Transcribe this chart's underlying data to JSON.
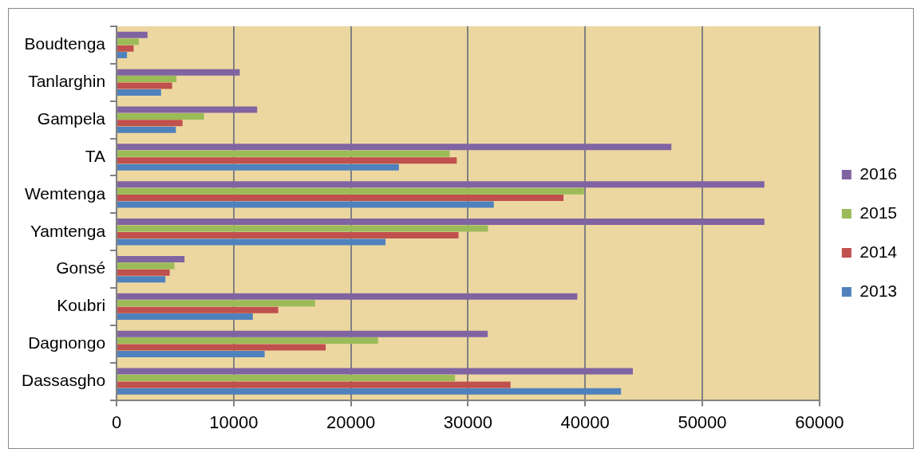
{
  "chart_data": {
    "type": "bar",
    "orientation": "horizontal",
    "categories": [
      "Boudtenga",
      "Tanlarghin",
      "Gampela",
      "TA",
      "Wemtenga",
      "Yamtenga",
      "Gonsé",
      "Koubri",
      "Dagnongo",
      "Dassasgho"
    ],
    "series": [
      {
        "name": "2016",
        "color": "#8064a2",
        "values": [
          2640,
          10520,
          12000,
          47360,
          55300,
          55300,
          5800,
          39330,
          31680,
          44070
        ]
      },
      {
        "name": "2015",
        "color": "#9bbb59",
        "values": [
          1900,
          5110,
          7460,
          28440,
          39900,
          31700,
          4940,
          16940,
          22320,
          28890
        ]
      },
      {
        "name": "2014",
        "color": "#c0504d",
        "values": [
          1460,
          4740,
          5630,
          29040,
          38150,
          29190,
          4540,
          13800,
          17850,
          33630
        ]
      },
      {
        "name": "2013",
        "color": "#4f81bd",
        "values": [
          890,
          3800,
          5060,
          24100,
          32200,
          22960,
          4170,
          11630,
          12640,
          43060
        ]
      }
    ],
    "xlim": [
      0,
      60000
    ],
    "xticks": [
      0,
      10000,
      20000,
      30000,
      40000,
      50000,
      60000
    ],
    "grid": "x",
    "legend": "right"
  }
}
